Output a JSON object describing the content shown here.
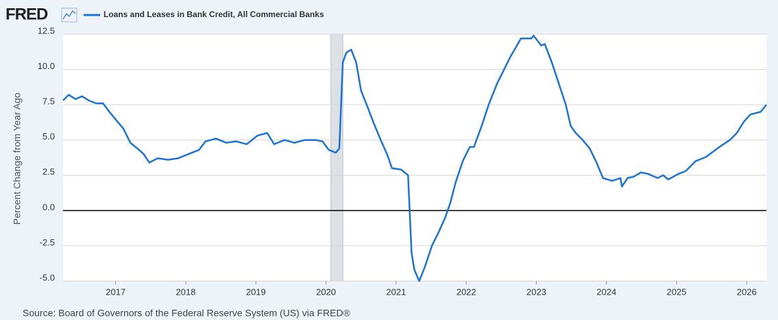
{
  "chart_data": {
    "type": "line",
    "logo": "FRED",
    "y_label": "Percent Change from Year Ago",
    "source": "Source: Board of Governors of the Federal Reserve System (US) via FRED®",
    "xlim": [
      2016.25,
      2026.28
    ],
    "xticks": [
      2017,
      2018,
      2019,
      2020,
      2021,
      2022,
      2023,
      2024,
      2025,
      2026
    ],
    "ylim": [
      -5,
      12.5
    ],
    "yticks": [
      {
        "value": -5,
        "label": "-5.0"
      },
      -2.5,
      {
        "value": 0,
        "label": "0.0"
      },
      2.5,
      {
        "value": 5,
        "label": "5.0"
      },
      7.5,
      {
        "value": 10,
        "label": "10.0"
      },
      12.5
    ],
    "grid": true,
    "recession": [
      2020.07,
      2020.24
    ],
    "x": [
      2016.25,
      2016.33,
      2016.43,
      2016.52,
      2016.62,
      2016.72,
      2016.82,
      2016.91,
      2017.01,
      2017.11,
      2017.21,
      2017.31,
      2017.4,
      2017.48,
      2017.6,
      2017.75,
      2017.89,
      2018.04,
      2018.19,
      2018.28,
      2018.43,
      2018.58,
      2018.72,
      2018.87,
      2019.02,
      2019.16,
      2019.26,
      2019.41,
      2019.55,
      2019.7,
      2019.85,
      2019.95,
      2020.04,
      2020.14,
      2020.19,
      2020.24,
      2020.29,
      2020.36,
      2020.43,
      2020.5,
      2020.58,
      2020.68,
      2020.78,
      2020.87,
      2020.94,
      2021.07,
      2021.17,
      2021.22,
      2021.26,
      2021.33,
      2021.41,
      2021.51,
      2021.61,
      2021.7,
      2021.77,
      2021.85,
      2021.95,
      2022.05,
      2022.11,
      2022.22,
      2022.32,
      2022.44,
      2022.54,
      2022.63,
      2022.7,
      2022.78,
      2022.93,
      2022.96,
      2023.07,
      2023.12,
      2023.22,
      2023.32,
      2023.42,
      2023.49,
      2023.56,
      2023.66,
      2023.76,
      2023.85,
      2023.95,
      2024.08,
      2024.2,
      2024.22,
      2024.3,
      2024.39,
      2024.49,
      2024.59,
      2024.73,
      2024.81,
      2024.88,
      2025.03,
      2025.13,
      2025.27,
      2025.42,
      2025.61,
      2025.76,
      2025.86,
      2025.96,
      2026.05,
      2026.2,
      2026.28
    ],
    "series": [
      {
        "name": "Loans and Leases in Bank Credit, All Commercial Banks",
        "color": "#1a73d9",
        "values": [
          7.8,
          8.2,
          7.9,
          8.1,
          7.8,
          7.6,
          7.6,
          7.0,
          6.4,
          5.8,
          4.8,
          4.4,
          4.0,
          3.4,
          3.7,
          3.6,
          3.7,
          4.0,
          4.3,
          4.9,
          5.1,
          4.8,
          4.9,
          4.7,
          5.3,
          5.5,
          4.7,
          5.0,
          4.8,
          5.0,
          5.0,
          4.9,
          4.3,
          4.1,
          4.4,
          10.5,
          11.2,
          11.4,
          10.5,
          8.5,
          7.5,
          6.2,
          5.0,
          4.0,
          3.0,
          2.9,
          2.5,
          -3.0,
          -4.2,
          -5.0,
          -4.0,
          -2.5,
          -1.5,
          -0.5,
          0.5,
          2.0,
          3.5,
          4.5,
          4.5,
          6.0,
          7.5,
          9.0,
          10.0,
          10.9,
          11.5,
          12.2,
          12.2,
          12.4,
          11.7,
          11.8,
          10.5,
          9.0,
          7.5,
          6.0,
          5.5,
          5.0,
          4.4,
          3.5,
          2.3,
          2.1,
          2.3,
          1.7,
          2.3,
          2.4,
          2.7,
          2.6,
          2.3,
          2.5,
          2.2,
          2.6,
          2.8,
          3.5,
          3.8,
          4.5,
          5.0,
          5.5,
          6.3,
          6.8,
          7.0,
          7.5
        ]
      }
    ]
  }
}
